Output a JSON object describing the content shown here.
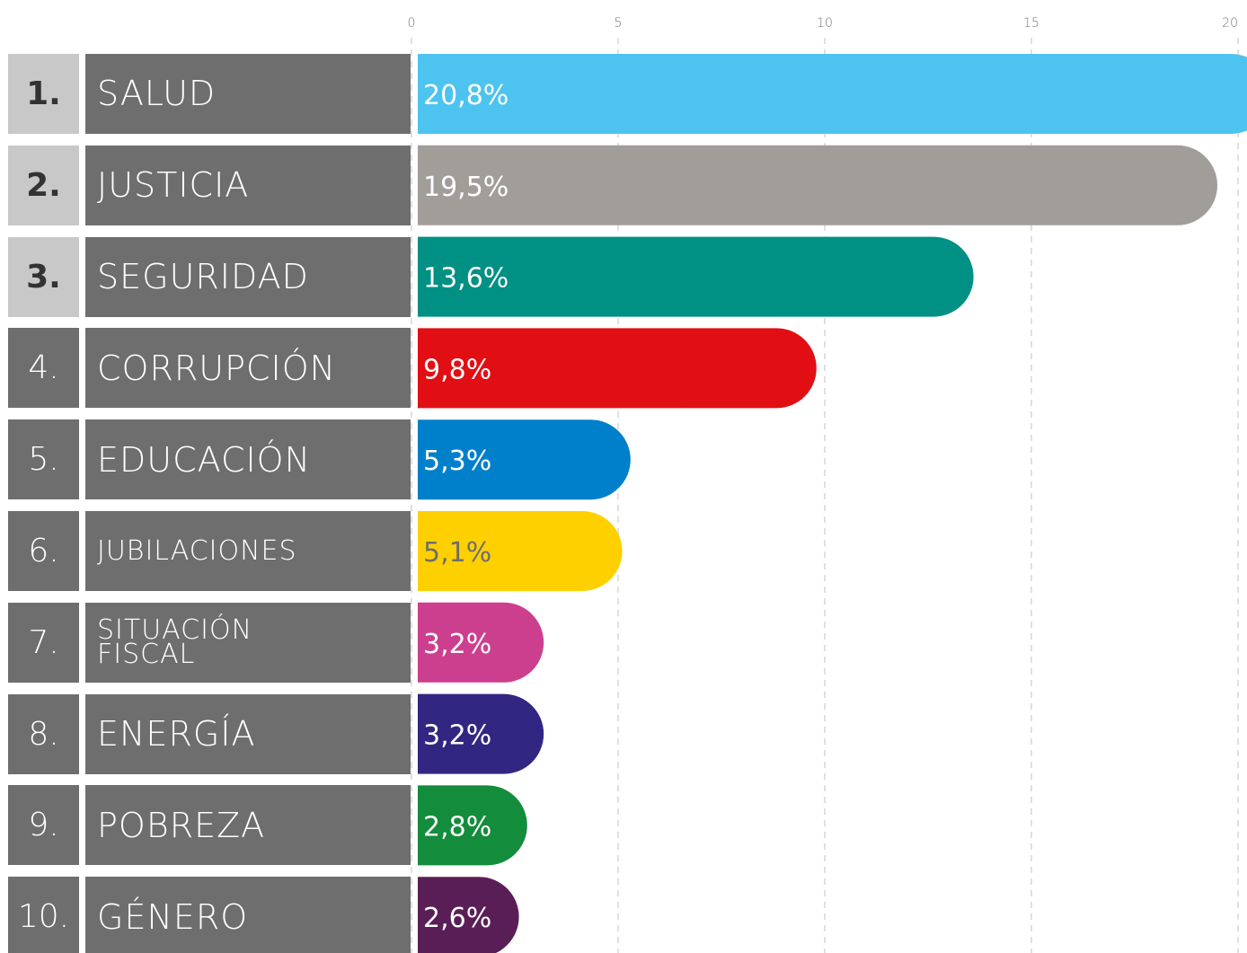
{
  "chart_data": {
    "type": "bar",
    "orientation": "horizontal",
    "ranks": [
      "1.",
      "2.",
      "3.",
      "4.",
      "5.",
      "6.",
      "7.",
      "8.",
      "9.",
      "10."
    ],
    "categories": [
      "SALUD",
      "JUSTICIA",
      "SEGURIDAD",
      "CORRUPCIÓN",
      "EDUCACIÓN",
      "JUBILACIONES",
      "SITUACIÓN FISCAL",
      "ENERGÍA",
      "POBREZA",
      "GÉNERO"
    ],
    "values": [
      20.8,
      19.5,
      13.6,
      9.8,
      5.3,
      5.1,
      3.2,
      3.2,
      2.8,
      2.6
    ],
    "value_labels": [
      "20,8%",
      "19,5%",
      "13,6%",
      "9,8%",
      "5,3%",
      "5,1%",
      "3,2%",
      "3,2%",
      "2,8%",
      "2,6%"
    ],
    "colors": [
      "#4dc3f0",
      "#a19d99",
      "#009084",
      "#e10f14",
      "#0080ca",
      "#ffd000",
      "#cc3f8e",
      "#312783",
      "#138c3b",
      "#5a1e57"
    ],
    "xlim": [
      0,
      20
    ],
    "xticks": [
      0,
      5,
      10,
      15,
      20
    ],
    "grid": true
  }
}
